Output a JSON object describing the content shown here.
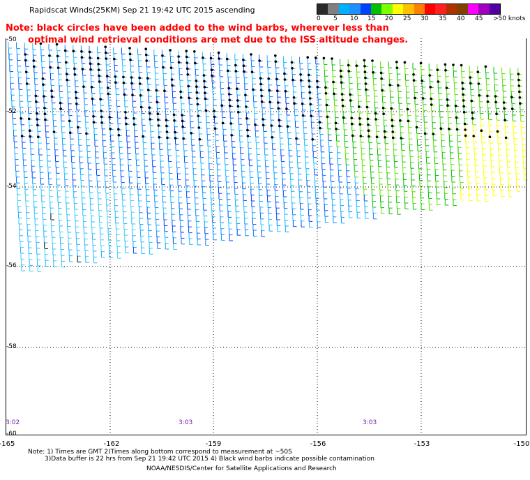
{
  "header": {
    "title": "Rapidscat Winds(25KM)  Sep 21 19:42 UTC 2015  ascending",
    "note_line1": "Note: black circles have been added to the wind barbs, wherever less than",
    "note_line2": "optimal wind retrieval conditions are met due to the ISS altitude changes."
  },
  "legend": {
    "colors": [
      "#2a2a2a",
      "#808080",
      "#00b0ff",
      "#2090ff",
      "#0040ff",
      "#00c000",
      "#80ff00",
      "#ffff00",
      "#ffc000",
      "#ff8000",
      "#ff0000",
      "#ff2020",
      "#b03000",
      "#804000",
      "#ff00ff",
      "#a000c0",
      "#5000a0"
    ],
    "labels": [
      "0",
      "5",
      "10",
      "15",
      "20",
      "25",
      "30",
      "35",
      "40",
      "45",
      ">50 knots"
    ]
  },
  "axes": {
    "lat_labels": [
      "-50",
      "-52",
      "-54",
      "-56",
      "-58",
      "-60"
    ],
    "lon_labels": [
      "-165",
      "-162",
      "-159",
      "-156",
      "-153",
      "-150"
    ]
  },
  "times": [
    "3:02",
    "3:03",
    "3:03"
  ],
  "footer": {
    "line1": "Note: 1) Times are GMT 2)Times along bottom correspond to measurement at ~50S",
    "line2": "3)Data buffer is 22 hrs from Sep 21 19:42 UTC 2015  4) Black wind barbs indicate possible contamination",
    "line3": "NOAA/NESDIS/Center for Satellite Applications and Research"
  }
}
